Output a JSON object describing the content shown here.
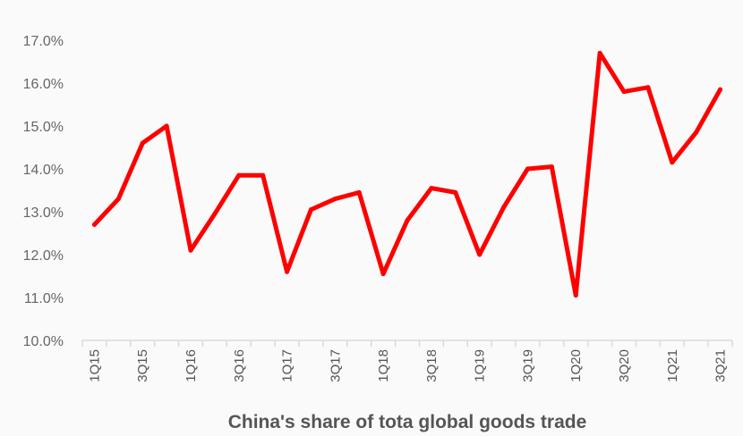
{
  "chart_data": {
    "type": "line",
    "title": "",
    "xlabel": "China's share of tota global goods trade",
    "ylabel": "",
    "ylim": [
      10.0,
      17.0
    ],
    "ytick_labels": [
      "10.0%",
      "11.0%",
      "12.0%",
      "13.0%",
      "14.0%",
      "15.0%",
      "16.0%",
      "17.0%"
    ],
    "categories": [
      "1Q15",
      "2Q15",
      "3Q15",
      "4Q15",
      "1Q16",
      "2Q16",
      "3Q16",
      "4Q16",
      "1Q17",
      "2Q17",
      "3Q17",
      "4Q17",
      "1Q18",
      "2Q18",
      "3Q18",
      "4Q18",
      "1Q19",
      "2Q19",
      "3Q19",
      "4Q19",
      "1Q20",
      "2Q20",
      "3Q20",
      "4Q20",
      "1Q21",
      "2Q21",
      "3Q21"
    ],
    "xtick_labels_shown": [
      "1Q15",
      "3Q15",
      "1Q16",
      "3Q16",
      "1Q17",
      "3Q17",
      "1Q18",
      "3Q18",
      "1Q19",
      "3Q19",
      "1Q20",
      "3Q20",
      "1Q21",
      "3Q21"
    ],
    "series": [
      {
        "values": [
          12.7,
          13.3,
          14.6,
          15.0,
          12.1,
          12.95,
          13.85,
          13.85,
          11.6,
          13.05,
          13.3,
          13.45,
          11.55,
          12.8,
          13.55,
          13.45,
          12.0,
          13.1,
          14.0,
          14.05,
          11.05,
          16.7,
          15.8,
          15.9,
          14.15,
          14.85,
          15.85
        ],
        "color": "#ff0000"
      }
    ],
    "grid": false,
    "legend": "none"
  }
}
